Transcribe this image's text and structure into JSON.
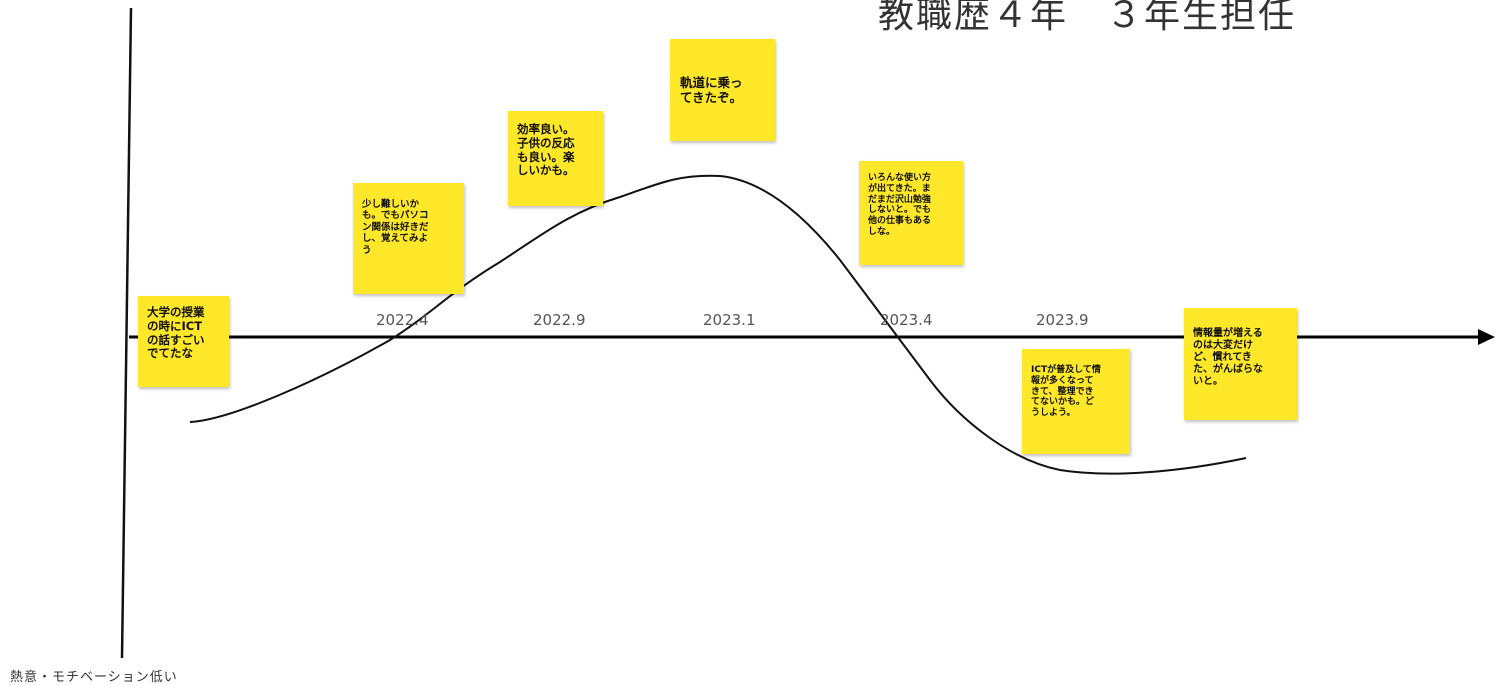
{
  "title": "教職歴４年　３年生担任",
  "y_axis_bottom_label": "熱意・モチベーション低い",
  "timeline": {
    "dates": [
      "2022.4",
      "2022.9",
      "2023.1",
      "2023.4",
      "2023.9"
    ]
  },
  "notes": [
    {
      "id": "note-start",
      "text": "大学の授業\nの時にICT\nの話すごい\nでてたな"
    },
    {
      "id": "note-2022-4",
      "text": "少し難しいか\nも。でもパソコ\nン関係は好きだ\nし、覚えてみよ\nう"
    },
    {
      "id": "note-2022-9",
      "text": "効率良い。\n子供の反応\nも良い。楽\nしいかも。"
    },
    {
      "id": "note-2023-1",
      "text": "軌道に乗っ\nてきたぞ。"
    },
    {
      "id": "note-2023-4",
      "text": "いろんな使い方\nが出てきた。ま\nだまだ沢山勉強\nしないと。でも\n他の仕事もある\nしな。"
    },
    {
      "id": "note-2023-9",
      "text": "ICTが普及して情\n報が多くなって\nきて、整理でき\nてないかも。ど\nうしよう。"
    },
    {
      "id": "note-end",
      "text": "情報量が増える\nのは大変だけ\nど、慣れてき\nた、がんばらな\nいと。"
    }
  ],
  "colors": {
    "sticky": "#ffe72a",
    "line": "#111111",
    "axis": "#000000"
  }
}
